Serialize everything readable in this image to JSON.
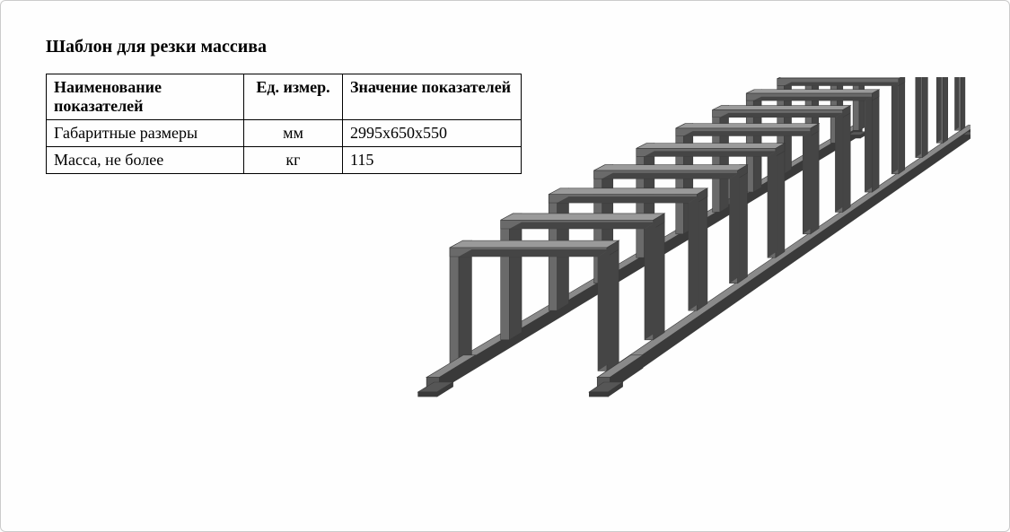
{
  "title": "Шаблон для резки массива",
  "table": {
    "headers": {
      "name": "Наименование показателей",
      "unit": "Ед. измер.",
      "value": "Значение показателей"
    },
    "rows": [
      {
        "name": "Габаритные размеры",
        "unit": "мм",
        "value": "2995х650х550"
      },
      {
        "name": "Масса, не более",
        "unit": "кг",
        "value": "115"
      }
    ]
  },
  "diagram": {
    "type": "3d-isometric-frame",
    "description": "steel cutting template frame with vertical slats",
    "num_slats": 12,
    "rail_color": "#565656",
    "rail_highlight": "#8a8a8a",
    "rail_shadow": "#3a3a3a",
    "slat_color": "#6a6a6a",
    "slat_highlight": "#9a9a9a",
    "slat_shadow": "#454545",
    "background": "#ffffff",
    "front_slat_height": 150,
    "front_inner_width": 175,
    "depth_spacing": 40,
    "perspective_scale": 0.68,
    "rail_thickness": 14,
    "slat_thickness": 10
  }
}
